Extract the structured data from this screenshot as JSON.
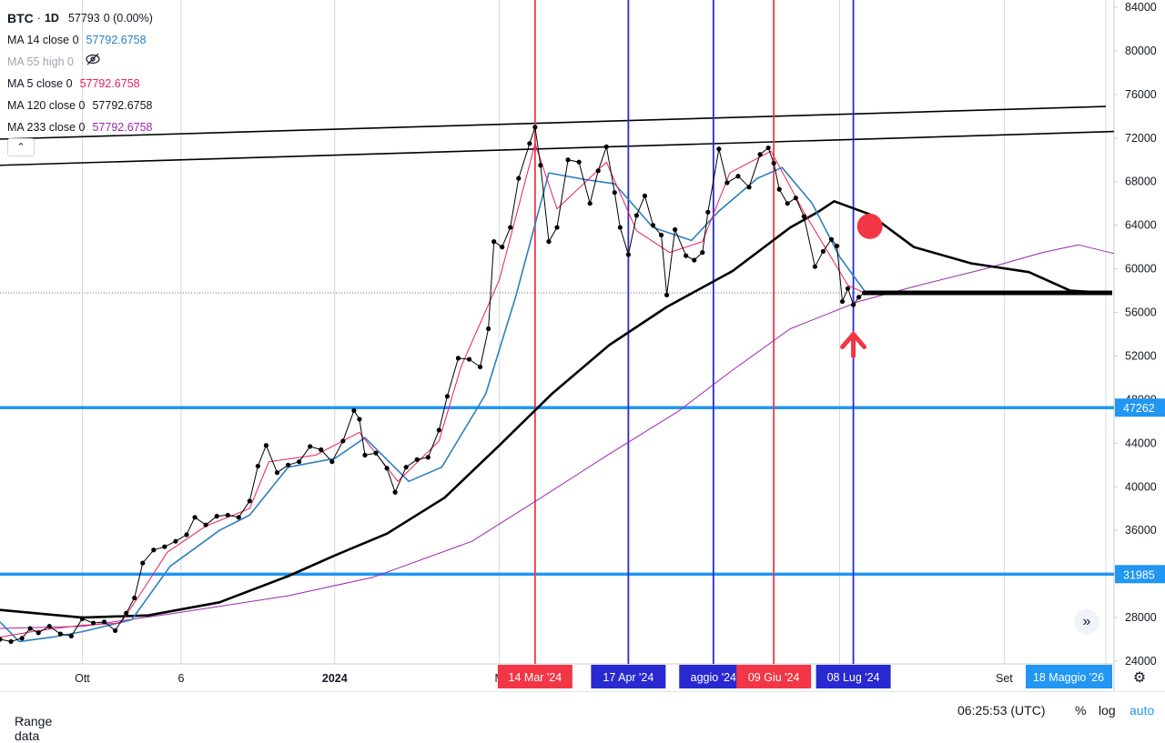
{
  "legend": {
    "symbol": "BTC",
    "interval": "1D",
    "price": "57793",
    "change": "0 (0.00%)",
    "indicators": [
      {
        "label": "MA 14 close 0",
        "value": "57792.6758",
        "color": "#2b7fc1"
      },
      {
        "label": "MA 55 high 0",
        "value": "",
        "color": "#a3a6af",
        "hidden": true
      },
      {
        "label": "MA 5 close 0",
        "value": "57792.6758",
        "color": "#e91e63"
      },
      {
        "label": "MA 120 close 0",
        "value": "57792.6758",
        "color": "#131722"
      },
      {
        "label": "MA 233 close 0",
        "value": "57792.6758",
        "color": "#9c27b0"
      }
    ],
    "collapse_icon": "chevron-up-icon",
    "hidden_icon": "eye-off-icon"
  },
  "chart_data": {
    "type": "line",
    "ylim": [
      24000,
      84000
    ],
    "y_ticks": [
      24000,
      28000,
      32000,
      36000,
      40000,
      44000,
      48000,
      52000,
      56000,
      60000,
      64000,
      68000,
      72000,
      76000,
      80000,
      84000
    ],
    "y_tick_labels": [
      "24000",
      "28000",
      "32000",
      "36000",
      "40000",
      "44000",
      "48000",
      "52000",
      "56000",
      "60000",
      "64000",
      "68000",
      "72000",
      "76000",
      "80000",
      "84000"
    ],
    "x_range": [
      "2023-09-01",
      "2024-10-11"
    ],
    "x_ticks": [
      {
        "date": "2023-10-01",
        "label": "Ott"
      },
      {
        "date": "2023-11-06",
        "label": "6"
      },
      {
        "date": "2024-01-01",
        "label": "2024"
      },
      {
        "date": "2024-03-01",
        "label": "M"
      },
      {
        "date": "2024-09-01",
        "label": "Set"
      }
    ],
    "date_badges": [
      {
        "date": "2024-03-14",
        "label": "14 Mar '24",
        "color": "#f23645"
      },
      {
        "date": "2024-04-17",
        "label": "17 Apr '24",
        "color": "#2929d1"
      },
      {
        "date": "2024-05-18",
        "label": "aggio '24",
        "color": "#2929d1"
      },
      {
        "date": "2024-06-09",
        "label": "09 Giu '24",
        "color": "#f23645"
      },
      {
        "date": "2024-07-08",
        "label": "08 Lug '24",
        "color": "#2929d1"
      }
    ],
    "far_badge": {
      "label": "18 Maggio '26",
      "color": "#2196f3"
    },
    "vertical_lines": [
      {
        "date": "2024-03-14",
        "color": "#f23645"
      },
      {
        "date": "2024-04-17",
        "color": "#2929d1"
      },
      {
        "date": "2024-05-18",
        "color": "#2929d1"
      },
      {
        "date": "2024-06-09",
        "color": "#f23645"
      },
      {
        "date": "2024-07-08",
        "color": "#2929d1"
      }
    ],
    "horizontal_levels": [
      {
        "value": 47262,
        "label": "47262",
        "color": "#2196f3"
      },
      {
        "value": 31985,
        "label": "31985",
        "color": "#2196f3"
      }
    ],
    "current_price": 57793,
    "trendlines": [
      {
        "from": [
          "2023-09-01",
          69500
        ],
        "to": [
          "2024-10-11",
          72600
        ],
        "color": "#000000"
      },
      {
        "from": [
          "2023-09-01",
          71900
        ],
        "to": [
          "2024-10-08",
          74900
        ],
        "color": "#000000"
      }
    ],
    "markers": [
      {
        "type": "circle",
        "date": "2024-07-14",
        "value": 63900,
        "color": "#f23645"
      },
      {
        "type": "arrow-up",
        "date": "2024-07-08",
        "value": 53500,
        "color": "#f23645"
      }
    ],
    "series": [
      {
        "name": "BTC",
        "color": "#000000",
        "points": [
          [
            "2023-09-01",
            26000
          ],
          [
            "2023-09-05",
            25800
          ],
          [
            "2023-09-09",
            26100
          ],
          [
            "2023-09-12",
            27000
          ],
          [
            "2023-09-15",
            26600
          ],
          [
            "2023-09-19",
            27200
          ],
          [
            "2023-09-23",
            26500
          ],
          [
            "2023-09-27",
            26300
          ],
          [
            "2023-10-01",
            27900
          ],
          [
            "2023-10-05",
            27500
          ],
          [
            "2023-10-09",
            27600
          ],
          [
            "2023-10-13",
            26800
          ],
          [
            "2023-10-17",
            28400
          ],
          [
            "2023-10-20",
            29800
          ],
          [
            "2023-10-23",
            33000
          ],
          [
            "2023-10-27",
            34200
          ],
          [
            "2023-10-31",
            34500
          ],
          [
            "2023-11-04",
            35000
          ],
          [
            "2023-11-08",
            35600
          ],
          [
            "2023-11-11",
            37200
          ],
          [
            "2023-11-15",
            36500
          ],
          [
            "2023-11-19",
            37300
          ],
          [
            "2023-11-23",
            37400
          ],
          [
            "2023-11-27",
            37200
          ],
          [
            "2023-12-01",
            38700
          ],
          [
            "2023-12-04",
            41900
          ],
          [
            "2023-12-07",
            43800
          ],
          [
            "2023-12-11",
            41300
          ],
          [
            "2023-12-15",
            42000
          ],
          [
            "2023-12-19",
            42300
          ],
          [
            "2023-12-23",
            43700
          ],
          [
            "2023-12-27",
            43400
          ],
          [
            "2023-12-31",
            42300
          ],
          [
            "2024-01-04",
            44200
          ],
          [
            "2024-01-08",
            47000
          ],
          [
            "2024-01-10",
            46200
          ],
          [
            "2024-01-12",
            42900
          ],
          [
            "2024-01-16",
            43100
          ],
          [
            "2024-01-20",
            41700
          ],
          [
            "2024-01-23",
            39500
          ],
          [
            "2024-01-27",
            41800
          ],
          [
            "2024-01-31",
            42500
          ],
          [
            "2024-02-04",
            42700
          ],
          [
            "2024-02-08",
            45200
          ],
          [
            "2024-02-11",
            48300
          ],
          [
            "2024-02-15",
            51800
          ],
          [
            "2024-02-19",
            51700
          ],
          [
            "2024-02-23",
            51000
          ],
          [
            "2024-02-26",
            54500
          ],
          [
            "2024-02-28",
            62500
          ],
          [
            "2024-03-02",
            62000
          ],
          [
            "2024-03-05",
            63800
          ],
          [
            "2024-03-08",
            68300
          ],
          [
            "2024-03-12",
            71500
          ],
          [
            "2024-03-14",
            73000
          ],
          [
            "2024-03-16",
            69500
          ],
          [
            "2024-03-19",
            62500
          ],
          [
            "2024-03-22",
            63800
          ],
          [
            "2024-03-26",
            70000
          ],
          [
            "2024-03-30",
            69800
          ],
          [
            "2024-04-03",
            66000
          ],
          [
            "2024-04-06",
            69000
          ],
          [
            "2024-04-09",
            71200
          ],
          [
            "2024-04-12",
            67000
          ],
          [
            "2024-04-14",
            63800
          ],
          [
            "2024-04-17",
            61300
          ],
          [
            "2024-04-20",
            64900
          ],
          [
            "2024-04-23",
            66700
          ],
          [
            "2024-04-26",
            64000
          ],
          [
            "2024-04-29",
            63100
          ],
          [
            "2024-05-01",
            57600
          ],
          [
            "2024-05-04",
            63600
          ],
          [
            "2024-05-08",
            61200
          ],
          [
            "2024-05-11",
            60800
          ],
          [
            "2024-05-14",
            61500
          ],
          [
            "2024-05-16",
            65200
          ],
          [
            "2024-05-20",
            71000
          ],
          [
            "2024-05-23",
            67900
          ],
          [
            "2024-05-27",
            68500
          ],
          [
            "2024-05-31",
            67500
          ],
          [
            "2024-06-04",
            70500
          ],
          [
            "2024-06-07",
            71100
          ],
          [
            "2024-06-09",
            69700
          ],
          [
            "2024-06-11",
            67300
          ],
          [
            "2024-06-14",
            66000
          ],
          [
            "2024-06-17",
            66500
          ],
          [
            "2024-06-20",
            64800
          ],
          [
            "2024-06-24",
            60200
          ],
          [
            "2024-06-27",
            61600
          ],
          [
            "2024-06-30",
            62700
          ],
          [
            "2024-07-02",
            62100
          ],
          [
            "2024-07-04",
            57000
          ],
          [
            "2024-07-06",
            58200
          ],
          [
            "2024-07-08",
            56700
          ],
          [
            "2024-07-10",
            57400
          ],
          [
            "2024-07-12",
            57793
          ]
        ]
      },
      {
        "name": "MA 5 close 0",
        "color": "#e91e63",
        "points": [
          [
            "2023-09-01",
            26200
          ],
          [
            "2023-09-15",
            26800
          ],
          [
            "2023-10-01",
            27300
          ],
          [
            "2023-10-15",
            27500
          ],
          [
            "2023-10-23",
            30500
          ],
          [
            "2023-11-01",
            34000
          ],
          [
            "2023-11-15",
            36400
          ],
          [
            "2023-12-01",
            38000
          ],
          [
            "2023-12-08",
            42300
          ],
          [
            "2023-12-25",
            42900
          ],
          [
            "2024-01-10",
            45000
          ],
          [
            "2024-01-24",
            40500
          ],
          [
            "2024-02-08",
            44200
          ],
          [
            "2024-02-16",
            51000
          ],
          [
            "2024-03-01",
            59000
          ],
          [
            "2024-03-14",
            71500
          ],
          [
            "2024-03-22",
            65500
          ],
          [
            "2024-04-09",
            69800
          ],
          [
            "2024-04-20",
            63500
          ],
          [
            "2024-05-02",
            61500
          ],
          [
            "2024-05-14",
            62500
          ],
          [
            "2024-05-24",
            68800
          ],
          [
            "2024-06-08",
            70800
          ],
          [
            "2024-06-20",
            65200
          ],
          [
            "2024-07-06",
            58500
          ],
          [
            "2024-07-12",
            57793
          ]
        ]
      },
      {
        "name": "MA 14 close 0",
        "color": "#2b7fc1",
        "points": [
          [
            "2023-09-01",
            27600
          ],
          [
            "2023-09-08",
            25800
          ],
          [
            "2023-09-20",
            26200
          ],
          [
            "2023-10-01",
            26700
          ],
          [
            "2023-10-19",
            27800
          ],
          [
            "2023-11-02",
            32700
          ],
          [
            "2023-11-20",
            36000
          ],
          [
            "2023-12-01",
            37400
          ],
          [
            "2023-12-15",
            41800
          ],
          [
            "2024-01-01",
            42600
          ],
          [
            "2024-01-12",
            44500
          ],
          [
            "2024-01-28",
            40500
          ],
          [
            "2024-02-09",
            41800
          ],
          [
            "2024-02-25",
            48500
          ],
          [
            "2024-03-07",
            57500
          ],
          [
            "2024-03-19",
            68800
          ],
          [
            "2024-04-01",
            68200
          ],
          [
            "2024-04-12",
            67800
          ],
          [
            "2024-04-26",
            63800
          ],
          [
            "2024-05-10",
            62600
          ],
          [
            "2024-05-20",
            65300
          ],
          [
            "2024-06-03",
            68300
          ],
          [
            "2024-06-12",
            69300
          ],
          [
            "2024-06-23",
            66000
          ],
          [
            "2024-07-03",
            61100
          ],
          [
            "2024-07-12",
            58000
          ]
        ]
      },
      {
        "name": "MA 120 close 0",
        "color": "#000000",
        "points": [
          [
            "2023-09-01",
            28700
          ],
          [
            "2023-10-01",
            28000
          ],
          [
            "2023-10-25",
            28200
          ],
          [
            "2023-11-20",
            29400
          ],
          [
            "2023-12-15",
            31800
          ],
          [
            "2024-01-01",
            33700
          ],
          [
            "2024-01-20",
            35700
          ],
          [
            "2024-02-10",
            39000
          ],
          [
            "2024-03-01",
            43800
          ],
          [
            "2024-03-20",
            48500
          ],
          [
            "2024-04-10",
            53000
          ],
          [
            "2024-05-01",
            56500
          ],
          [
            "2024-05-25",
            59800
          ],
          [
            "2024-06-15",
            63800
          ],
          [
            "2024-06-25",
            65200
          ],
          [
            "2024-07-01",
            66200
          ],
          [
            "2024-07-14",
            65000
          ],
          [
            "2024-07-30",
            62000
          ],
          [
            "2024-08-20",
            60500
          ],
          [
            "2024-09-10",
            59700
          ],
          [
            "2024-09-25",
            58000
          ],
          [
            "2024-10-08",
            57800
          ]
        ]
      },
      {
        "name": "MA 233 close 0",
        "color": "#9c27b0",
        "points": [
          [
            "2023-09-01",
            27000
          ],
          [
            "2023-10-01",
            27200
          ],
          [
            "2023-11-01",
            28300
          ],
          [
            "2023-12-15",
            30000
          ],
          [
            "2024-01-15",
            31700
          ],
          [
            "2024-02-20",
            35000
          ],
          [
            "2024-03-15",
            38800
          ],
          [
            "2024-04-10",
            43000
          ],
          [
            "2024-05-05",
            46900
          ],
          [
            "2024-05-25",
            50700
          ],
          [
            "2024-06-15",
            54500
          ],
          [
            "2024-07-10",
            57000
          ],
          [
            "2024-08-01",
            58500
          ],
          [
            "2024-08-25",
            60000
          ],
          [
            "2024-09-15",
            61500
          ],
          [
            "2024-09-28",
            62200
          ],
          [
            "2024-10-11",
            61400
          ]
        ]
      }
    ]
  },
  "bottom": {
    "range_label": "Range data",
    "range_chevron": "chevron-down-icon",
    "clock": "06:25:53 (UTC)",
    "percent": "%",
    "log": "log",
    "auto": "auto",
    "auto_color": "#2196f3"
  },
  "nav_icon": "double-chevron-right-icon",
  "settings_icon": "gear-icon"
}
